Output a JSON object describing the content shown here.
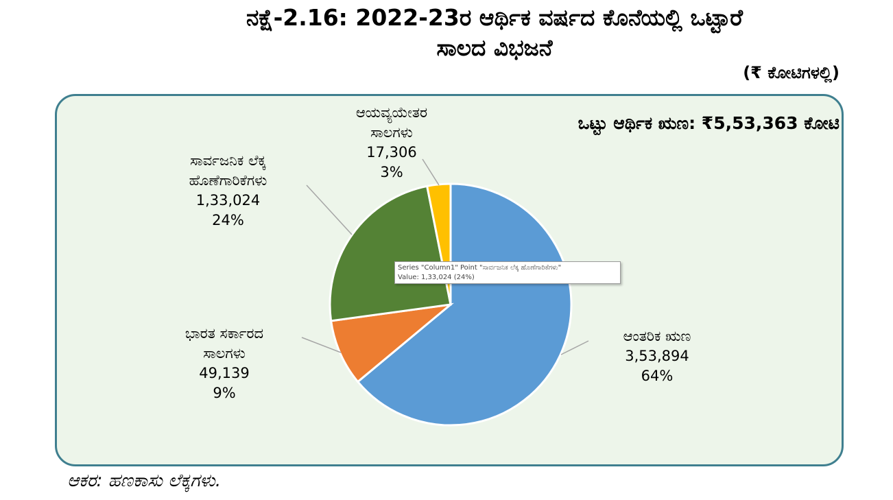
{
  "title_line1": "ನಕ್ಷೆ-2.16: 2022-23ರ ಆರ್ಥಿಕ ವರ್ಷದ ಕೊನೆಯಲ್ಲಿ ಒಟ್ಟಾರೆ",
  "title_line2": "ಸಾಲದ ವಿಭಜನೆ",
  "unit": "(₹ ಕೋಟಿಗಳಲ್ಲಿ)",
  "total_label": "ಒಟ್ಟು ಆರ್ಥಿಕ ಋಣ: ₹5,53,363 ಕೋಟಿ",
  "tooltip": {
    "line1": "Series \"Column1\" Point \"ಸಾರ್ವಜನಿಕ ಲೆಕ್ಕ ಹೊಣೆಗಾರಿಕೆಗಳು\"",
    "line2": "Value: 1,33,024 (24%)"
  },
  "source": "ಆಕರ: ಹಣಕಾಸು ಲೆಕ್ಕಗಳು.",
  "chart_data": {
    "type": "pie",
    "title": "ನಕ್ಷೆ-2.16: 2022-23ರ ಆರ್ಥಿಕ ವರ್ಷದ ಕೊನೆಯಲ್ಲಿ ಒಟ್ಟಾರೆ ಸಾಲದ ವಿಭಜನೆ",
    "slices": [
      {
        "label_line1": "ಆಂತರಿಕ ಋಣ",
        "label_line2": "",
        "value": 353894,
        "value_text": "3,53,894",
        "percent_text": "64%",
        "color": "#5b9bd5"
      },
      {
        "label_line1": "ಭಾರತ ಸರ್ಕಾರದ",
        "label_line2": "ಸಾಲಗಳು",
        "value": 49139,
        "value_text": "49,139",
        "percent_text": "9%",
        "color": "#ed7d31"
      },
      {
        "label_line1": "ಸಾರ್ವಜನಿಕ ಲೆಕ್ಕ",
        "label_line2": "ಹೊಣೆಗಾರಿಕೆಗಳು",
        "value": 133024,
        "value_text": "1,33,024",
        "percent_text": "24%",
        "color": "#548235"
      },
      {
        "label_line1": "ಆಯವ್ಯಯೇತರ",
        "label_line2": "ಸಾಲಗಳು",
        "value": 17306,
        "value_text": "17,306",
        "percent_text": "3%",
        "color": "#ffc000"
      }
    ]
  }
}
